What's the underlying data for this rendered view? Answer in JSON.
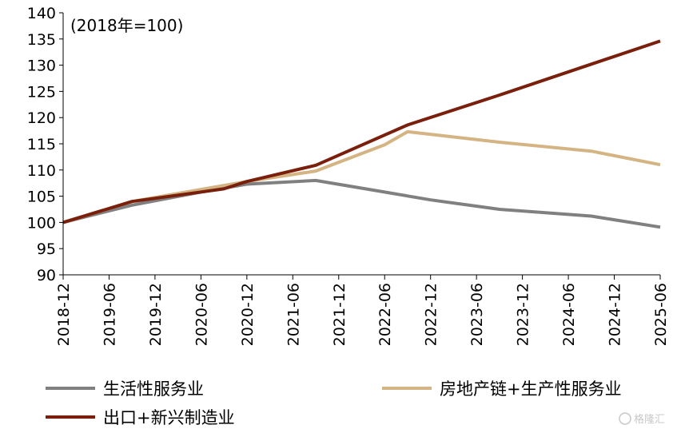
{
  "chart_data": {
    "type": "line",
    "annotation": "(2018年=100)",
    "ylim": [
      90,
      140
    ],
    "yticks": [
      90,
      95,
      100,
      105,
      110,
      115,
      120,
      125,
      130,
      135,
      140
    ],
    "x_tick_labels": [
      "2018-12",
      "2019-06",
      "2019-12",
      "2020-06",
      "2020-12",
      "2021-06",
      "2021-12",
      "2022-06",
      "2022-12",
      "2023-06",
      "2023-12",
      "2024-06",
      "2024-12",
      "2025-06"
    ],
    "x_start": "2018-12",
    "x_end": "2025-06",
    "series": [
      {
        "name": "生活性服务业",
        "color": "#808080",
        "points": [
          [
            "2018-12",
            100.0
          ],
          [
            "2019-09",
            103.3
          ],
          [
            "2020-06",
            105.8
          ],
          [
            "2020-12",
            107.3
          ],
          [
            "2021-09",
            108.0
          ],
          [
            "2022-06",
            105.8
          ],
          [
            "2022-12",
            104.3
          ],
          [
            "2023-09",
            102.5
          ],
          [
            "2024-09",
            101.2
          ],
          [
            "2025-06",
            99.1
          ]
        ]
      },
      {
        "name": "房地产链+生产性服务业",
        "color": "#d4b483",
        "points": [
          [
            "2018-12",
            100.0
          ],
          [
            "2019-09",
            104.0
          ],
          [
            "2020-06",
            106.3
          ],
          [
            "2020-12",
            107.8
          ],
          [
            "2021-09",
            109.8
          ],
          [
            "2022-06",
            114.8
          ],
          [
            "2022-09",
            117.3
          ],
          [
            "2023-09",
            115.3
          ],
          [
            "2024-09",
            113.6
          ],
          [
            "2025-06",
            111.0
          ]
        ]
      },
      {
        "name": "出口+新兴制造业",
        "color": "#7a1f0c",
        "points": [
          [
            "2018-12",
            100.0
          ],
          [
            "2019-09",
            104.0
          ],
          [
            "2020-09",
            106.4
          ],
          [
            "2020-12",
            107.8
          ],
          [
            "2021-09",
            110.9
          ],
          [
            "2022-09",
            118.6
          ],
          [
            "2023-09",
            124.3
          ],
          [
            "2024-09",
            130.2
          ],
          [
            "2025-06",
            134.6
          ]
        ]
      }
    ],
    "legend": "bottom"
  },
  "watermark": "格隆汇"
}
